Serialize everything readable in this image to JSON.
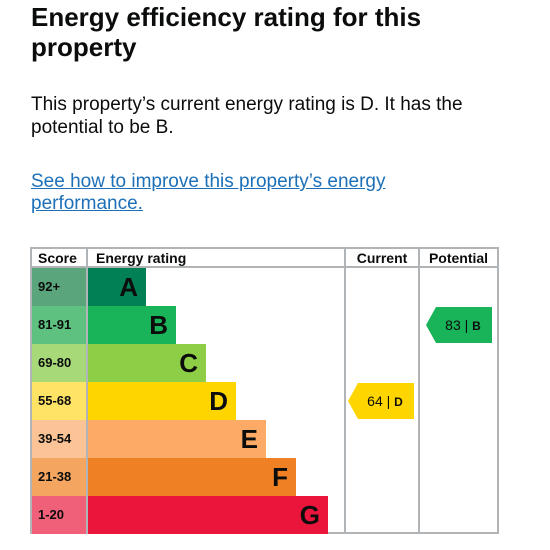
{
  "title": "Energy efficiency rating for this property",
  "summary": "This property’s current energy rating is D. It has the potential to be B.",
  "link_text": "See how to improve this property’s energy performance.",
  "table": {
    "headers": {
      "score": "Score",
      "rating": "Energy rating",
      "current": "Current",
      "potential": "Potential"
    },
    "bands": [
      {
        "range": "92+",
        "letter": "A",
        "color": "#008054",
        "label_bg": "#5aa57b"
      },
      {
        "range": "81-91",
        "letter": "B",
        "color": "#19b459",
        "label_bg": "#5ec17f"
      },
      {
        "range": "69-80",
        "letter": "C",
        "color": "#8dce46",
        "label_bg": "#a7d978"
      },
      {
        "range": "55-68",
        "letter": "D",
        "color": "#ffd500",
        "label_bg": "#ffe365"
      },
      {
        "range": "39-54",
        "letter": "E",
        "color": "#fcaa65",
        "label_bg": "#fcc496"
      },
      {
        "range": "21-38",
        "letter": "F",
        "color": "#ef8023",
        "label_bg": "#f4a560"
      },
      {
        "range": "1-20",
        "letter": "G",
        "color": "#e9153b",
        "label_bg": "#f06078"
      }
    ],
    "current": {
      "score": "64",
      "letter": "D",
      "separator": "|",
      "color": "#ffd500"
    },
    "potential": {
      "score": "83",
      "letter": "B",
      "separator": "|",
      "color": "#19b459"
    }
  }
}
